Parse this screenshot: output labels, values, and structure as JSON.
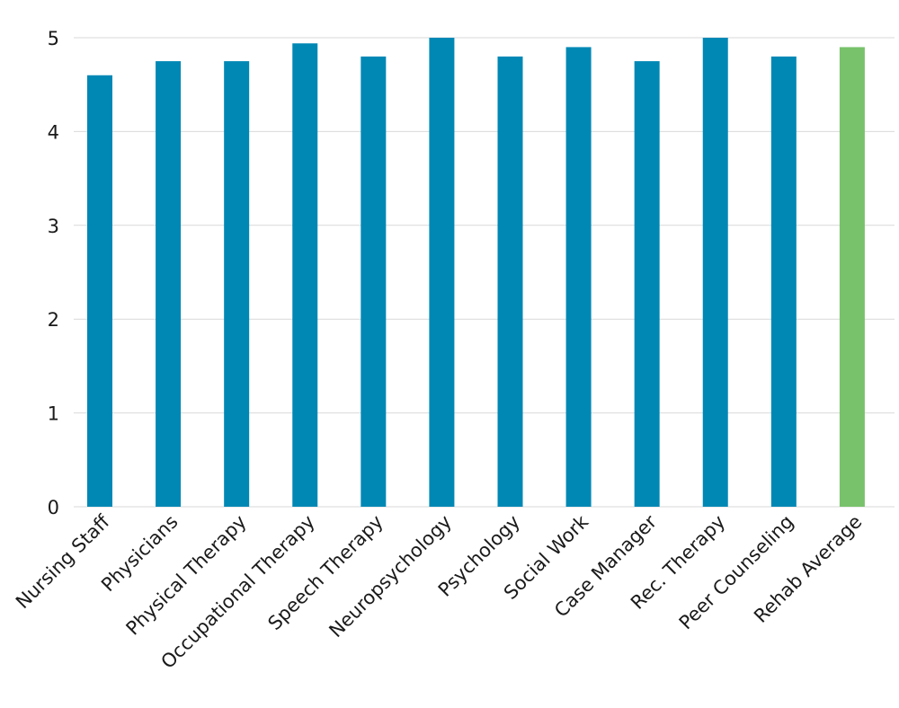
{
  "chart_data": {
    "type": "bar",
    "title": "",
    "xlabel": "",
    "ylabel": "",
    "ylim": [
      0,
      5
    ],
    "yticks": [
      0,
      1,
      2,
      3,
      4,
      5
    ],
    "grid": true,
    "categories": [
      "Nursing Staff",
      "Physicians",
      "Physical Therapy",
      "Occupational Therapy",
      "Speech Therapy",
      "Neuropsychology",
      "Psychology",
      "Social Work",
      "Case Manager",
      "Rec. Therapy",
      "Peer Counseling",
      "Rehab Average"
    ],
    "values": [
      4.6,
      4.75,
      4.75,
      4.94,
      4.8,
      5.0,
      4.8,
      4.9,
      4.75,
      5.0,
      4.8,
      4.9
    ],
    "colors": {
      "default": "#0088b5",
      "highlight": "#77c26b"
    },
    "highlight_index": 11
  }
}
